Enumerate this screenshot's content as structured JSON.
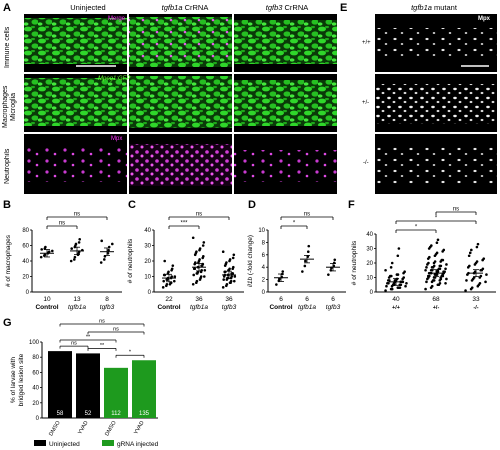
{
  "panel_a": {
    "letter": "A",
    "columns": [
      {
        "label": "Uninjected",
        "italic": false
      },
      {
        "label_it": "tgfb1a",
        "label_rest": " CrRNA"
      },
      {
        "label_it": "tgfb3",
        "label_rest": " CrRNA"
      }
    ],
    "rows": [
      {
        "label": "Immune cells",
        "channel": "Merge",
        "channel_color": "#ff33ff"
      },
      {
        "label": "Macrophages Microglia",
        "label_line1": "Macrophages",
        "label_line2": "Microglia",
        "channel": "Mpeg1:GFP",
        "channel_color": "#66ff33"
      },
      {
        "label": "Neutrophils",
        "channel": "Mpx",
        "channel_color": "#ff33ff"
      }
    ],
    "colors": {
      "gfp": "#22c81e",
      "mpx": "#d23cd6"
    }
  },
  "panel_e": {
    "letter": "E",
    "title_it": "tgfb1a",
    "title_rest": " mutant",
    "channel": "Mpx",
    "genotypes": [
      "+/+",
      "+/-",
      "-/-"
    ]
  },
  "chart_data": [
    {
      "panel": "B",
      "type": "scatter",
      "ylabel": "# of macrophages",
      "ylim": [
        0,
        80
      ],
      "yticks": [
        0,
        20,
        40,
        60,
        80
      ],
      "categories": [
        "Control",
        "tgfb1a",
        "tgfb3"
      ],
      "n": [
        "10",
        "13",
        "8"
      ],
      "means": [
        50,
        53,
        52
      ],
      "points": [
        [
          45,
          47,
          48,
          50,
          51,
          52,
          53,
          55,
          56,
          58
        ],
        [
          40,
          42,
          45,
          48,
          50,
          52,
          54,
          56,
          58,
          60,
          62,
          64,
          68
        ],
        [
          38,
          42,
          46,
          50,
          54,
          58,
          62,
          66
        ]
      ],
      "significance": [
        {
          "from": 0,
          "to": 1,
          "label": "ns"
        },
        {
          "from": 0,
          "to": 2,
          "label": "ns"
        }
      ]
    },
    {
      "panel": "C",
      "type": "scatter",
      "ylabel": "# of neutrophils",
      "ylim": [
        0,
        40
      ],
      "yticks": [
        0,
        10,
        20,
        30,
        40
      ],
      "categories": [
        "Control",
        "tgfb1a",
        "tgfb3"
      ],
      "n": [
        "22",
        "36",
        "36"
      ],
      "means": [
        9,
        16,
        11
      ],
      "points": [
        [
          3,
          4,
          5,
          5,
          6,
          6,
          7,
          7,
          8,
          8,
          9,
          9,
          10,
          10,
          11,
          11,
          12,
          13,
          14,
          15,
          17,
          20
        ],
        [
          5,
          6,
          7,
          8,
          9,
          10,
          10,
          11,
          12,
          12,
          13,
          13,
          14,
          14,
          15,
          15,
          16,
          16,
          17,
          17,
          18,
          18,
          19,
          19,
          20,
          21,
          22,
          23,
          24,
          25,
          26,
          27,
          28,
          30,
          32,
          35
        ],
        [
          3,
          4,
          5,
          6,
          6,
          7,
          7,
          8,
          8,
          9,
          9,
          9,
          10,
          10,
          10,
          11,
          11,
          11,
          12,
          12,
          12,
          13,
          13,
          14,
          14,
          15,
          15,
          16,
          17,
          18,
          19,
          20,
          21,
          22,
          24,
          26
        ]
      ],
      "significance": [
        {
          "from": 0,
          "to": 1,
          "label": "***"
        },
        {
          "from": 0,
          "to": 2,
          "label": "ns"
        }
      ]
    },
    {
      "panel": "D",
      "type": "scatter",
      "ylabel": "il1b (-fold change)",
      "ylabel_it": "il1b",
      "ylabel_rest": " (-fold change)",
      "ylim": [
        0,
        10
      ],
      "yticks": [
        0,
        2,
        4,
        6,
        8,
        10
      ],
      "categories": [
        "Control",
        "tgfb1a",
        "tgfb3"
      ],
      "n": [
        "6",
        "6",
        "6"
      ],
      "means": [
        2.3,
        5.3,
        4.0
      ],
      "points": [
        [
          1.2,
          1.8,
          2.1,
          2.4,
          2.9,
          3.3
        ],
        [
          3.3,
          4.2,
          5.0,
          5.7,
          6.5,
          7.4
        ],
        [
          2.8,
          3.5,
          3.9,
          4.2,
          4.7,
          5.2
        ]
      ],
      "significance": [
        {
          "from": 0,
          "to": 1,
          "label": "*"
        },
        {
          "from": 0,
          "to": 2,
          "label": "ns"
        }
      ]
    },
    {
      "panel": "F",
      "type": "scatter",
      "ylabel": "# of neutrophils",
      "ylim": [
        0,
        40
      ],
      "yticks": [
        0,
        10,
        20,
        30,
        40
      ],
      "categories": [
        "+/+",
        "+/-",
        "-/-"
      ],
      "n": [
        "40",
        "68",
        "33"
      ],
      "means": [
        7,
        13,
        13
      ],
      "points": [
        [
          1,
          2,
          2,
          3,
          3,
          3,
          4,
          4,
          4,
          5,
          5,
          5,
          5,
          6,
          6,
          6,
          6,
          7,
          7,
          7,
          7,
          8,
          8,
          8,
          8,
          9,
          9,
          10,
          10,
          11,
          11,
          12,
          12,
          13,
          14,
          15,
          17,
          20,
          25,
          30
        ],
        [
          2,
          3,
          4,
          5,
          5,
          6,
          6,
          7,
          7,
          8,
          8,
          8,
          9,
          9,
          9,
          10,
          10,
          10,
          10,
          11,
          11,
          11,
          11,
          12,
          12,
          12,
          12,
          13,
          13,
          13,
          13,
          14,
          14,
          14,
          14,
          15,
          15,
          15,
          15,
          16,
          16,
          16,
          17,
          17,
          17,
          18,
          18,
          18,
          19,
          19,
          20,
          20,
          21,
          21,
          22,
          22,
          23,
          24,
          25,
          26,
          27,
          28,
          29,
          30,
          31,
          32,
          34,
          36
        ],
        [
          1,
          2,
          3,
          4,
          5,
          6,
          7,
          8,
          8,
          9,
          10,
          10,
          11,
          12,
          12,
          13,
          13,
          14,
          15,
          15,
          16,
          17,
          18,
          19,
          20,
          21,
          22,
          23,
          25,
          27,
          29,
          31,
          33
        ]
      ],
      "significance": [
        {
          "from": 0,
          "to": 1,
          "label": "*"
        },
        {
          "from": 0,
          "to": 2,
          "label": "*"
        },
        {
          "from": 1,
          "to": 2,
          "label": "ns"
        }
      ]
    },
    {
      "panel": "G",
      "type": "bar",
      "ylabel": "% of larvae with bridged lesion site",
      "ylabel_line1": "% of larvae with",
      "ylabel_line2": "bridged lesion site",
      "ylim": [
        0,
        100
      ],
      "yticks": [
        0,
        20,
        40,
        60,
        80,
        100
      ],
      "categories": [
        "DMSO",
        "YVAD",
        "DMSO",
        "YVAD"
      ],
      "values": [
        88,
        85,
        66,
        76
      ],
      "n": [
        "58",
        "52",
        "112",
        "135"
      ],
      "bar_colors": [
        "#000000",
        "#000000",
        "#1e9a1e",
        "#1e9a1e"
      ],
      "significance": [
        {
          "from": 0,
          "to": 1,
          "label": "ns"
        },
        {
          "from": 1,
          "to": 2,
          "label": "**"
        },
        {
          "from": 2,
          "to": 3,
          "label": "*"
        },
        {
          "from": 0,
          "to": 2,
          "label": "**"
        },
        {
          "from": 1,
          "to": 3,
          "label": "ns"
        },
        {
          "from": 0,
          "to": 3,
          "label": "ns"
        }
      ],
      "legend": [
        {
          "label": "Uninjected",
          "color": "#000000"
        },
        {
          "label": "gRNA injected",
          "color": "#1e9a1e"
        }
      ]
    }
  ]
}
